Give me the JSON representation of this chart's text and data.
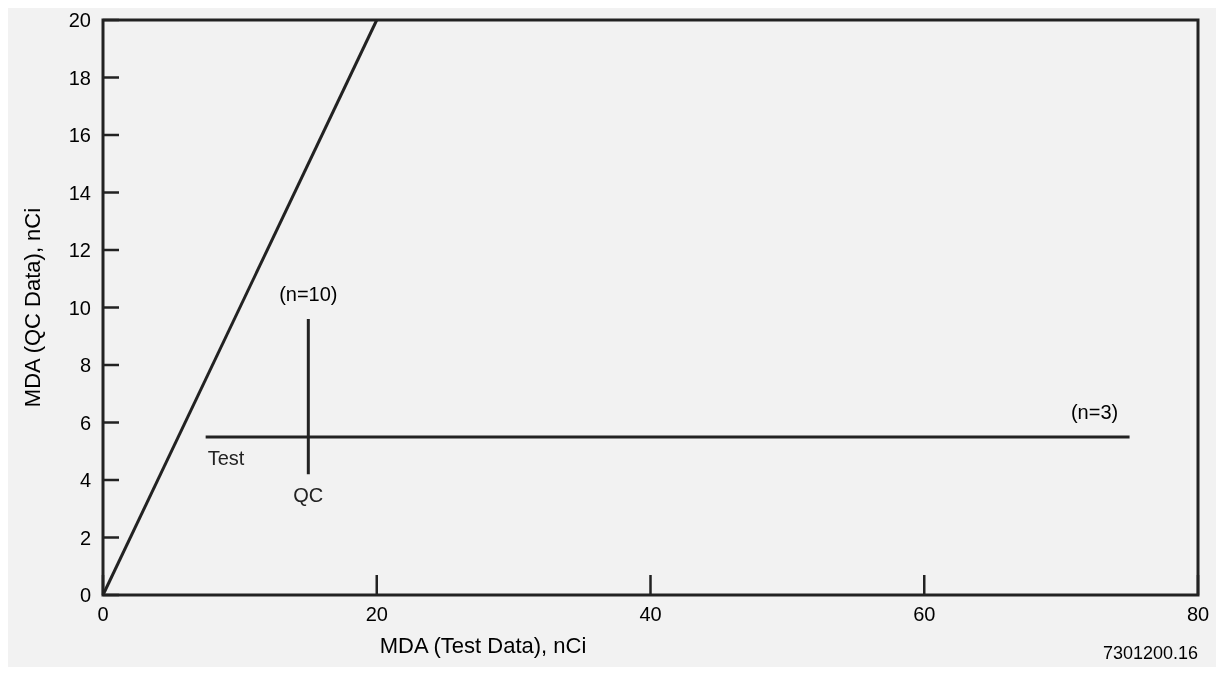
{
  "chart_data": {
    "type": "line",
    "xlabel": "MDA (Test Data), nCi",
    "ylabel": "MDA (QC Data), nCi",
    "xlim": [
      0,
      80
    ],
    "xticks": [
      0,
      20,
      40,
      60,
      80
    ],
    "ylim": [
      0,
      20
    ],
    "yticks": [
      0,
      2,
      4,
      6,
      8,
      10,
      12,
      14,
      16,
      18,
      20
    ],
    "grid": false,
    "marker": "none",
    "line_style": "solid",
    "series": [
      {
        "color": "#222222",
        "x": [
          0,
          20
        ],
        "values": [
          0,
          20
        ]
      },
      {
        "name": "Test",
        "color": "#222222",
        "x": [
          7.5,
          75
        ],
        "values": [
          5.5,
          5.5
        ]
      },
      {
        "name": "QC",
        "color": "#222222",
        "x": [
          15,
          15
        ],
        "values": [
          4.2,
          9.6
        ]
      }
    ],
    "annotations": [
      "(n=10)",
      "(n=3)",
      "7301200.16"
    ]
  }
}
